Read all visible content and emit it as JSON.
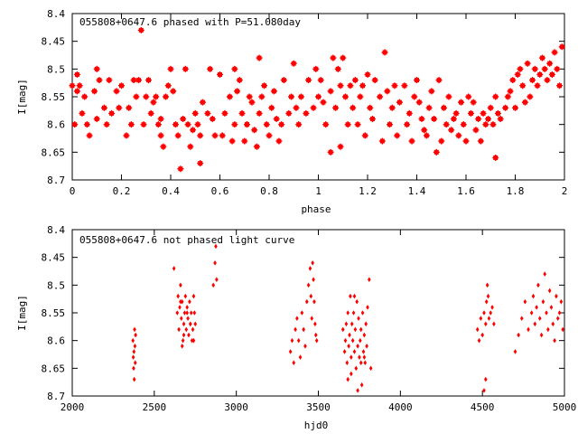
{
  "chart_data": [
    {
      "type": "scatter",
      "title": "055808+0647.6 phased with P=51.080day",
      "xlabel": "phase",
      "ylabel": "I[mag]",
      "xlim": [
        0,
        2
      ],
      "ylim": [
        8.4,
        8.7
      ],
      "y_inverted": true,
      "x_ticks": [
        "0",
        "0.2",
        "0.4",
        "0.6",
        "0.8",
        "1",
        "1.2",
        "1.4",
        "1.6",
        "1.8",
        "2"
      ],
      "y_ticks": [
        "8.4",
        "8.45",
        "8.5",
        "8.55",
        "8.6",
        "8.65",
        "8.7"
      ],
      "marker_color": "#ff0000",
      "series": [
        {
          "x": [
            0.0,
            0.01,
            0.02,
            0.02,
            0.03,
            0.04,
            0.05,
            0.06,
            0.07,
            0.09,
            0.1,
            0.1,
            0.11,
            0.13,
            0.14,
            0.15,
            0.16,
            0.18,
            0.19,
            0.2,
            0.22,
            0.23,
            0.24,
            0.25,
            0.26,
            0.27,
            0.29,
            0.3,
            0.31,
            0.32,
            0.33,
            0.34,
            0.35,
            0.36,
            0.37,
            0.38,
            0.39,
            0.4,
            0.41,
            0.42,
            0.43,
            0.45,
            0.46,
            0.47,
            0.48,
            0.49,
            0.5,
            0.51,
            0.52,
            0.53,
            0.55,
            0.56,
            0.57,
            0.58,
            0.6,
            0.61,
            0.62,
            0.64,
            0.65,
            0.66,
            0.67,
            0.68,
            0.69,
            0.7,
            0.71,
            0.72,
            0.73,
            0.74,
            0.75,
            0.76,
            0.77,
            0.78,
            0.79,
            0.8,
            0.81,
            0.82,
            0.83,
            0.84,
            0.85,
            0.86,
            0.88,
            0.89,
            0.9,
            0.91,
            0.92,
            0.93,
            0.95,
            0.96,
            0.98,
            0.99,
            1.0,
            1.01,
            1.02,
            1.03,
            1.05,
            1.06,
            1.07,
            1.08,
            1.09,
            1.1,
            1.11,
            1.12,
            1.13,
            1.14,
            1.15,
            1.16,
            1.17,
            1.18,
            1.19,
            1.2,
            1.21,
            1.22,
            1.23,
            1.25,
            1.26,
            1.27,
            1.28,
            1.29,
            1.3,
            1.31,
            1.32,
            1.33,
            1.35,
            1.36,
            1.37,
            1.38,
            1.39,
            1.4,
            1.41,
            1.42,
            1.43,
            1.44,
            1.45,
            1.46,
            1.47,
            1.48,
            1.49,
            1.5,
            1.51,
            1.52,
            1.53,
            1.54,
            1.55,
            1.56,
            1.57,
            1.58,
            1.59,
            1.6,
            1.61,
            1.62,
            1.63,
            1.64,
            1.65,
            1.66,
            1.67,
            1.68,
            1.69,
            1.7,
            1.71,
            1.72,
            1.73,
            1.74,
            1.76,
            1.77,
            1.78,
            1.79,
            1.8,
            1.81,
            1.82,
            1.83,
            1.84,
            1.85,
            1.86,
            1.87,
            1.88,
            1.89,
            1.9,
            1.91,
            1.92,
            1.93,
            1.94,
            1.95,
            1.96,
            1.97,
            1.98,
            1.99,
            0.66,
            0.76,
            0.28,
            1.05,
            0.44,
            0.52,
            1.09,
            0.36,
            0.71,
            1.72
          ],
          "y": [
            8.53,
            8.6,
            8.51,
            8.54,
            8.53,
            8.58,
            8.55,
            8.6,
            8.62,
            8.54,
            8.5,
            8.59,
            8.52,
            8.57,
            8.6,
            8.52,
            8.58,
            8.54,
            8.57,
            8.53,
            8.62,
            8.57,
            8.6,
            8.52,
            8.55,
            8.52,
            8.6,
            8.55,
            8.52,
            8.58,
            8.56,
            8.55,
            8.6,
            8.62,
            8.64,
            8.55,
            8.53,
            8.5,
            8.54,
            8.6,
            8.62,
            8.59,
            8.5,
            8.6,
            8.64,
            8.61,
            8.58,
            8.6,
            8.62,
            8.56,
            8.58,
            8.5,
            8.59,
            8.62,
            8.51,
            8.62,
            8.58,
            8.55,
            8.63,
            8.6,
            8.54,
            8.52,
            8.58,
            8.63,
            8.6,
            8.55,
            8.56,
            8.61,
            8.64,
            8.58,
            8.55,
            8.53,
            8.6,
            8.62,
            8.57,
            8.54,
            8.59,
            8.63,
            8.6,
            8.52,
            8.58,
            8.55,
            8.49,
            8.57,
            8.6,
            8.55,
            8.58,
            8.52,
            8.57,
            8.5,
            8.55,
            8.52,
            8.56,
            8.6,
            8.54,
            8.48,
            8.57,
            8.5,
            8.53,
            8.48,
            8.55,
            8.6,
            8.53,
            8.57,
            8.52,
            8.6,
            8.55,
            8.53,
            8.62,
            8.51,
            8.57,
            8.59,
            8.52,
            8.55,
            8.63,
            8.47,
            8.54,
            8.6,
            8.57,
            8.53,
            8.62,
            8.56,
            8.53,
            8.6,
            8.58,
            8.63,
            8.55,
            8.52,
            8.56,
            8.59,
            8.61,
            8.62,
            8.57,
            8.54,
            8.59,
            8.65,
            8.52,
            8.63,
            8.57,
            8.6,
            8.55,
            8.61,
            8.59,
            8.58,
            8.62,
            8.56,
            8.6,
            8.63,
            8.55,
            8.58,
            8.56,
            8.61,
            8.59,
            8.63,
            8.58,
            8.6,
            8.59,
            8.57,
            8.6,
            8.55,
            8.58,
            8.59,
            8.57,
            8.55,
            8.54,
            8.52,
            8.57,
            8.51,
            8.5,
            8.53,
            8.56,
            8.49,
            8.55,
            8.52,
            8.5,
            8.53,
            8.51,
            8.48,
            8.5,
            8.52,
            8.49,
            8.51,
            8.47,
            8.5,
            8.53,
            8.46,
            8.5,
            8.48,
            8.43,
            8.65,
            8.68,
            8.67,
            8.64,
            8.59,
            8.6,
            8.66
          ]
        }
      ]
    },
    {
      "type": "scatter",
      "title": "055808+0647.6 not phased light curve",
      "xlabel": "hjd0",
      "ylabel": "I[mag]",
      "xlim": [
        2000,
        5000
      ],
      "ylim": [
        8.4,
        8.7
      ],
      "y_inverted": true,
      "x_ticks": [
        "2000",
        "2500",
        "3000",
        "3500",
        "4000",
        "4500",
        "5000"
      ],
      "y_ticks": [
        "8.4",
        "8.45",
        "8.5",
        "8.55",
        "8.6",
        "8.65",
        "8.7"
      ],
      "marker_color": "#ff0000",
      "series": [
        {
          "x": [
            2370,
            2372,
            2374,
            2376,
            2378,
            2380,
            2382,
            2384,
            2386,
            2620,
            2640,
            2645,
            2650,
            2655,
            2660,
            2665,
            2670,
            2675,
            2680,
            2685,
            2690,
            2695,
            2700,
            2705,
            2710,
            2715,
            2720,
            2725,
            2730,
            2735,
            2740,
            2745,
            2750,
            2660,
            2670,
            2680,
            2700,
            2720,
            2740,
            2860,
            2870,
            2875,
            2880,
            3330,
            3340,
            3350,
            3360,
            3370,
            3380,
            3390,
            3400,
            3410,
            3420,
            3430,
            3440,
            3450,
            3455,
            3460,
            3465,
            3470,
            3475,
            3480,
            3485,
            3490,
            3650,
            3660,
            3665,
            3670,
            3675,
            3680,
            3685,
            3690,
            3695,
            3700,
            3705,
            3710,
            3715,
            3720,
            3725,
            3730,
            3735,
            3740,
            3745,
            3750,
            3755,
            3760,
            3765,
            3770,
            3775,
            3780,
            3785,
            3790,
            3795,
            3800,
            3810,
            3820,
            3680,
            3700,
            3720,
            3740,
            3760,
            3780,
            4470,
            4480,
            4490,
            4500,
            4510,
            4520,
            4525,
            4530,
            4535,
            4540,
            4550,
            4560,
            4570,
            4510,
            4520,
            4700,
            4720,
            4740,
            4760,
            4780,
            4800,
            4810,
            4820,
            4830,
            4840,
            4850,
            4860,
            4870,
            4880,
            4890,
            4900,
            4910,
            4920,
            4930,
            4940,
            4950,
            4960,
            4970,
            4980,
            4990
          ],
          "y": [
            8.6,
            8.63,
            8.65,
            8.62,
            8.67,
            8.58,
            8.61,
            8.64,
            8.59,
            8.47,
            8.55,
            8.52,
            8.58,
            8.54,
            8.5,
            8.56,
            8.53,
            8.6,
            8.57,
            8.55,
            8.52,
            8.58,
            8.54,
            8.56,
            8.59,
            8.53,
            8.57,
            8.55,
            8.6,
            8.58,
            8.52,
            8.55,
            8.57,
            8.53,
            8.61,
            8.59,
            8.55,
            8.57,
            8.6,
            8.5,
            8.46,
            8.43,
            8.49,
            8.62,
            8.6,
            8.64,
            8.58,
            8.56,
            8.6,
            8.63,
            8.55,
            8.58,
            8.61,
            8.53,
            8.5,
            8.47,
            8.52,
            8.56,
            8.46,
            8.49,
            8.53,
            8.57,
            8.59,
            8.6,
            8.58,
            8.62,
            8.6,
            8.57,
            8.64,
            8.55,
            8.61,
            8.59,
            8.52,
            8.63,
            8.57,
            8.6,
            8.55,
            8.62,
            8.58,
            8.65,
            8.53,
            8.61,
            8.56,
            8.63,
            8.6,
            8.58,
            8.68,
            8.55,
            8.62,
            8.59,
            8.64,
            8.57,
            8.61,
            8.54,
            8.49,
            8.65,
            8.67,
            8.66,
            8.52,
            8.69,
            8.64,
            8.63,
            8.58,
            8.6,
            8.56,
            8.59,
            8.55,
            8.57,
            8.53,
            8.5,
            8.52,
            8.56,
            8.55,
            8.54,
            8.57,
            8.69,
            8.67,
            8.62,
            8.59,
            8.56,
            8.53,
            8.58,
            8.55,
            8.52,
            8.57,
            8.54,
            8.5,
            8.56,
            8.59,
            8.53,
            8.48,
            8.55,
            8.58,
            8.51,
            8.54,
            8.57,
            8.6,
            8.52,
            8.56,
            8.55,
            8.53,
            8.58
          ]
        }
      ]
    }
  ]
}
